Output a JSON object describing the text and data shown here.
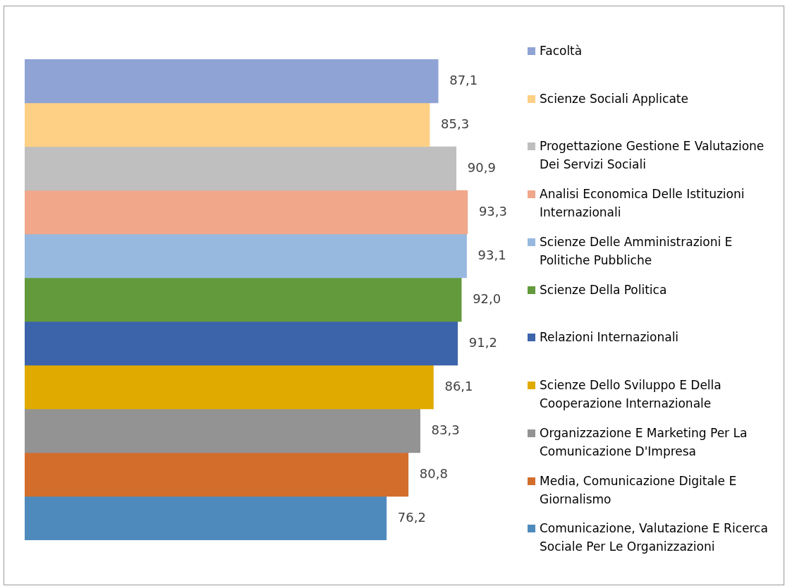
{
  "chart_data": {
    "type": "bar",
    "orientation": "horizontal",
    "categories": [
      null
    ],
    "legend": "right",
    "series": [
      {
        "name": "Facoltà",
        "color": "#8fa3d4",
        "values": [
          87.1
        ],
        "value_labels": [
          "87,1"
        ]
      },
      {
        "name": "Scienze Sociali Applicate",
        "color": "#fdd086",
        "values": [
          85.3
        ],
        "value_labels": [
          "85,3"
        ]
      },
      {
        "name": "Progettazione Gestione E Valutazione Dei Servizi Sociali",
        "color": "#bfbfbf",
        "values": [
          90.9
        ],
        "value_labels": [
          "90,9"
        ]
      },
      {
        "name": "Analisi Economica Delle Istituzioni Internazionali",
        "color": "#f0a78a",
        "values": [
          93.3
        ],
        "value_labels": [
          "93,3"
        ]
      },
      {
        "name": "Scienze Delle Amministrazioni E Politiche Pubbliche",
        "color": "#97b9e0",
        "values": [
          93.1
        ],
        "value_labels": [
          "93,1"
        ]
      },
      {
        "name": "Scienze Della Politica",
        "color": "#629a3c",
        "values": [
          92.0
        ],
        "value_labels": [
          "92,0"
        ]
      },
      {
        "name": "Relazioni Internazionali",
        "color": "#3c64ab",
        "values": [
          91.2
        ],
        "value_labels": [
          "91,2"
        ]
      },
      {
        "name": "Scienze Dello Sviluppo E Della Cooperazione Internazionale",
        "color": "#e1aa00",
        "values": [
          86.1
        ],
        "value_labels": [
          "86,1"
        ]
      },
      {
        "name": "Organizzazione E Marketing Per La Comunicazione D'Impresa",
        "color": "#939393",
        "values": [
          83.3
        ],
        "value_labels": [
          "83,3"
        ]
      },
      {
        "name": "Media, Comunicazione Digitale E Giornalismo",
        "color": "#d26d2c",
        "values": [
          80.8
        ],
        "value_labels": [
          "80,8"
        ]
      },
      {
        "name": "Comunicazione, Valutazione E Ricerca Sociale Per Le Organizzazioni",
        "color": "#4f8abd",
        "values": [
          76.2
        ],
        "value_labels": [
          "76,2"
        ]
      }
    ]
  }
}
